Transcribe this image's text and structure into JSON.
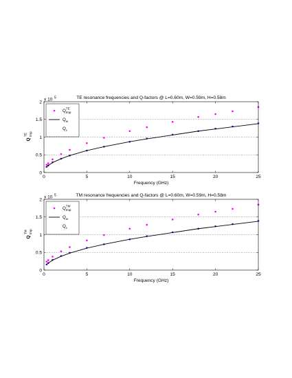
{
  "chart_data": [
    {
      "type": "scatter",
      "title": "TE resonance frequencies and Q-factors @ L=0.60m, W=0.59m, H=0.58m",
      "xlabel": "Frequency (GHz)",
      "ylabel_main": "Q",
      "ylabel_sup": "TE",
      "ylabel_sub": "tmp",
      "y_multiplier_base": "x 10",
      "y_multiplier_exp": "5",
      "xlim": [
        0,
        25
      ],
      "ylim": [
        0,
        2
      ],
      "xticks": [
        0,
        5,
        10,
        15,
        20,
        25
      ],
      "yticks": [
        0,
        0.5,
        1,
        1.5,
        2
      ],
      "xtick_labels": [
        "0",
        "5",
        "10",
        "15",
        "20",
        "25"
      ],
      "ytick_labels": [
        "0",
        "0.5",
        "1",
        "1.5",
        "2"
      ],
      "grid": "horizontal dashed at 0.5, 1, 1.5",
      "legend": {
        "placement": "top-left",
        "entries": [
          {
            "main": "Q",
            "sup": "TE",
            "sub": "tmp",
            "marker": "dot",
            "color": "#ff00ff"
          },
          {
            "main": "Q",
            "sup": "",
            "sub": "w",
            "marker": "line",
            "color": "#000000"
          },
          {
            "main": "Q",
            "sup": "",
            "sub": "c",
            "marker": "none",
            "color": "#000000"
          }
        ]
      },
      "series": [
        {
          "marker": "dot",
          "color": "#ff00ff",
          "x": [
            0.3,
            0.5,
            1,
            2,
            3,
            5,
            7,
            10,
            12,
            15,
            18,
            20,
            22,
            25
          ],
          "y": [
            0.22,
            0.26,
            0.37,
            0.52,
            0.64,
            0.83,
            0.98,
            1.17,
            1.28,
            1.43,
            1.57,
            1.65,
            1.73,
            1.85
          ]
        },
        {
          "marker": "dot",
          "color": "#6600cc",
          "x": [
            0.3,
            0.5,
            1,
            2,
            3,
            5,
            7,
            10,
            12,
            15,
            18,
            20,
            22,
            25
          ],
          "y": [
            0.16,
            0.2,
            0.29,
            0.39,
            0.48,
            0.62,
            0.73,
            0.87,
            0.96,
            1.07,
            1.17,
            1.24,
            1.3,
            1.39
          ]
        },
        {
          "marker": "line",
          "color": "#000000",
          "x": [
            0.3,
            0.5,
            1,
            2,
            3,
            5,
            7,
            10,
            12,
            15,
            18,
            20,
            22,
            25
          ],
          "y": [
            0.15,
            0.2,
            0.28,
            0.39,
            0.48,
            0.62,
            0.73,
            0.87,
            0.95,
            1.06,
            1.17,
            1.23,
            1.29,
            1.38
          ]
        }
      ]
    },
    {
      "type": "scatter",
      "title": "TM resonance frequencies and Q-factors @ L=0.60m, W=0.59m, H=0.58m",
      "xlabel": "Frequency (GHz)",
      "ylabel_main": "Q",
      "ylabel_sup": "TM",
      "ylabel_sub": "tmp",
      "y_multiplier_base": "x 10",
      "y_multiplier_exp": "5",
      "xlim": [
        0,
        25
      ],
      "ylim": [
        0,
        2
      ],
      "xticks": [
        0,
        5,
        10,
        15,
        20,
        25
      ],
      "yticks": [
        0,
        0.5,
        1,
        1.5,
        2
      ],
      "xtick_labels": [
        "0",
        "5",
        "10",
        "15",
        "20",
        "25"
      ],
      "ytick_labels": [
        "0",
        "0.5",
        "1",
        "1.5",
        "2"
      ],
      "grid": "horizontal dashed at 0.5, 1, 1.5",
      "legend": {
        "placement": "top-left",
        "entries": [
          {
            "main": "Q",
            "sup": "TM",
            "sub": "tmp",
            "marker": "dot",
            "color": "#ff00ff"
          },
          {
            "main": "Q",
            "sup": "",
            "sub": "w",
            "marker": "line",
            "color": "#000000"
          },
          {
            "main": "Q",
            "sup": "",
            "sub": "c",
            "marker": "none",
            "color": "#000000"
          }
        ]
      },
      "series": [
        {
          "marker": "dot",
          "color": "#ff00ff",
          "x": [
            0.3,
            0.5,
            1,
            2,
            3,
            5,
            7,
            10,
            12,
            15,
            18,
            20,
            22,
            25
          ],
          "y": [
            0.24,
            0.28,
            0.38,
            0.53,
            0.65,
            0.84,
            0.99,
            1.17,
            1.28,
            1.43,
            1.57,
            1.65,
            1.73,
            1.85
          ]
        },
        {
          "marker": "dot",
          "color": "#6600cc",
          "x": [
            0.3,
            0.5,
            1,
            2,
            3,
            5,
            7,
            10,
            12,
            15,
            18,
            20,
            22,
            25
          ],
          "y": [
            0.16,
            0.2,
            0.29,
            0.4,
            0.49,
            0.63,
            0.73,
            0.87,
            0.96,
            1.07,
            1.17,
            1.24,
            1.3,
            1.39
          ]
        },
        {
          "marker": "line",
          "color": "#000000",
          "x": [
            0.3,
            0.5,
            1,
            2,
            3,
            5,
            7,
            10,
            12,
            15,
            18,
            20,
            22,
            25
          ],
          "y": [
            0.15,
            0.2,
            0.28,
            0.39,
            0.48,
            0.62,
            0.73,
            0.87,
            0.95,
            1.06,
            1.17,
            1.23,
            1.29,
            1.38
          ]
        }
      ]
    }
  ]
}
